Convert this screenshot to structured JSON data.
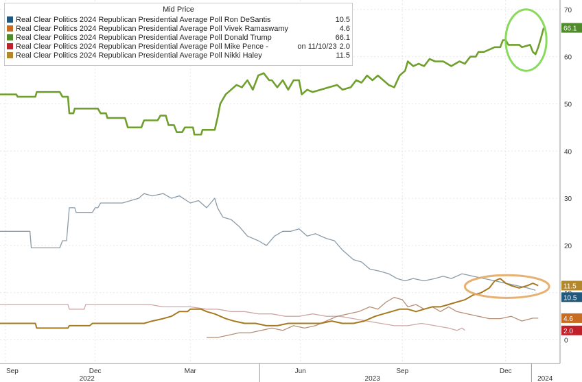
{
  "chart_data": {
    "type": "line",
    "legend_title": "Mid Price",
    "legend_position": "top-left",
    "grid": true,
    "ylim": [
      -5,
      72
    ],
    "y_ticks": [
      0,
      10,
      20,
      30,
      40,
      50,
      60,
      70
    ],
    "x_ticks": [
      "Sep",
      "Dec",
      "Mar",
      "Jun",
      "Sep",
      "Dec"
    ],
    "year_labels": [
      "2022",
      "2023",
      "2024"
    ],
    "series": [
      {
        "name": "Real Clear Politics 2024 Republican Presidential Average Poll Ron DeSantis",
        "last_value": "10.5",
        "last_tag": "10.5",
        "color": "#8a9aa6",
        "legend_color": "#23587d",
        "points": [
          [
            0,
            23
          ],
          [
            1.1,
            23
          ],
          [
            1.15,
            19.5
          ],
          [
            2.2,
            19.5
          ],
          [
            2.3,
            21
          ],
          [
            2.45,
            21
          ],
          [
            2.55,
            28
          ],
          [
            2.75,
            28
          ],
          [
            2.8,
            27
          ],
          [
            3.4,
            27
          ],
          [
            3.5,
            28
          ],
          [
            3.6,
            28
          ],
          [
            3.7,
            29
          ],
          [
            4,
            29
          ],
          [
            4.5,
            29
          ],
          [
            5.1,
            30
          ],
          [
            5.3,
            31
          ],
          [
            5.6,
            30.5
          ],
          [
            6,
            31
          ],
          [
            6.3,
            30
          ],
          [
            6.6,
            30.5
          ],
          [
            7,
            29
          ],
          [
            7.3,
            29.5
          ],
          [
            7.6,
            28
          ],
          [
            7.75,
            29
          ],
          [
            7.9,
            30
          ],
          [
            8.0,
            28
          ],
          [
            8.2,
            26
          ],
          [
            8.5,
            25.5
          ],
          [
            8.8,
            24
          ],
          [
            9.1,
            22
          ],
          [
            9.5,
            21
          ],
          [
            9.8,
            20
          ],
          [
            10.1,
            22
          ],
          [
            10.4,
            23
          ],
          [
            10.7,
            23
          ],
          [
            11,
            23.5
          ],
          [
            11.3,
            22
          ],
          [
            11.6,
            22.5
          ],
          [
            12,
            21.5
          ],
          [
            12.3,
            21
          ],
          [
            12.6,
            19
          ],
          [
            13,
            17
          ],
          [
            13.3,
            16.5
          ],
          [
            13.6,
            15
          ],
          [
            14,
            14.5
          ],
          [
            14.3,
            14
          ],
          [
            14.6,
            13
          ],
          [
            14.9,
            12.5
          ],
          [
            15.2,
            13
          ],
          [
            15.6,
            12.5
          ],
          [
            16,
            13
          ],
          [
            16.3,
            13.5
          ],
          [
            16.6,
            13
          ],
          [
            17,
            14
          ],
          [
            17.4,
            13.5
          ],
          [
            17.8,
            13
          ],
          [
            18.2,
            12.5
          ],
          [
            18.6,
            12
          ],
          [
            19,
            11.5
          ],
          [
            19.4,
            11
          ],
          [
            19.7,
            10.5
          ]
        ]
      },
      {
        "name": "Real Clear Politics 2024 Republican Presidential Average Poll Vivek Ramaswamy",
        "last_value": "4.6",
        "last_tag": "4.6",
        "color": "#b78d76",
        "legend_color": "#c86c22",
        "points": [
          [
            7.6,
            0.5
          ],
          [
            8,
            0.5
          ],
          [
            8.4,
            1
          ],
          [
            8.8,
            1.5
          ],
          [
            9.2,
            1.5
          ],
          [
            9.6,
            2
          ],
          [
            10,
            2.5
          ],
          [
            10.4,
            2
          ],
          [
            10.8,
            3
          ],
          [
            11.2,
            2.5
          ],
          [
            11.6,
            3
          ],
          [
            12,
            4
          ],
          [
            12.4,
            5
          ],
          [
            12.8,
            5.5
          ],
          [
            13.2,
            6
          ],
          [
            13.6,
            7
          ],
          [
            13.9,
            6.5
          ],
          [
            14.2,
            8
          ],
          [
            14.5,
            9
          ],
          [
            14.8,
            8.5
          ],
          [
            15,
            7
          ],
          [
            15.3,
            7.5
          ],
          [
            15.6,
            6.5
          ],
          [
            15.9,
            7
          ],
          [
            16.2,
            6
          ],
          [
            16.5,
            7
          ],
          [
            16.8,
            6
          ],
          [
            17.2,
            5.5
          ],
          [
            17.6,
            5
          ],
          [
            18,
            4.5
          ],
          [
            18.4,
            4.5
          ],
          [
            18.8,
            5
          ],
          [
            19.2,
            4
          ],
          [
            19.6,
            4.6
          ],
          [
            19.8,
            4.6
          ]
        ]
      },
      {
        "name": "Real Clear Politics 2024 Republican Presidential Average Poll Donald Trump",
        "last_value": "66.1",
        "last_tag": "66.1",
        "color": "#6f9f2c",
        "legend_color": "#4f8b2b",
        "points": [
          [
            0,
            52
          ],
          [
            0.6,
            52
          ],
          [
            0.65,
            51.5
          ],
          [
            1.3,
            51.5
          ],
          [
            1.35,
            52.5
          ],
          [
            2.2,
            52.5
          ],
          [
            2.3,
            51.5
          ],
          [
            2.5,
            51.5
          ],
          [
            2.55,
            48
          ],
          [
            2.7,
            48
          ],
          [
            2.75,
            49
          ],
          [
            3.6,
            49
          ],
          [
            3.7,
            48
          ],
          [
            3.9,
            48
          ],
          [
            3.95,
            47
          ],
          [
            4.6,
            47
          ],
          [
            4.7,
            45
          ],
          [
            5.2,
            45
          ],
          [
            5.3,
            46.5
          ],
          [
            5.8,
            46.5
          ],
          [
            5.9,
            47.5
          ],
          [
            6.1,
            47.5
          ],
          [
            6.2,
            45.5
          ],
          [
            6.4,
            45.5
          ],
          [
            6.5,
            44
          ],
          [
            6.7,
            44
          ],
          [
            6.8,
            45
          ],
          [
            7.1,
            45
          ],
          [
            7.15,
            43.5
          ],
          [
            7.4,
            43.5
          ],
          [
            7.45,
            44.5
          ],
          [
            7.9,
            44.5
          ],
          [
            8,
            47
          ],
          [
            8.1,
            50
          ],
          [
            8.3,
            52
          ],
          [
            8.5,
            53
          ],
          [
            8.7,
            54
          ],
          [
            8.9,
            53.5
          ],
          [
            9.1,
            55
          ],
          [
            9.3,
            53
          ],
          [
            9.5,
            56
          ],
          [
            9.7,
            56.5
          ],
          [
            9.9,
            55
          ],
          [
            10,
            55
          ],
          [
            10.2,
            53.5
          ],
          [
            10.4,
            55
          ],
          [
            10.6,
            53
          ],
          [
            10.8,
            55
          ],
          [
            11,
            55
          ],
          [
            11.1,
            52
          ],
          [
            11.3,
            53
          ],
          [
            11.5,
            52.5
          ],
          [
            11.8,
            53
          ],
          [
            12.1,
            53.5
          ],
          [
            12.4,
            54
          ],
          [
            12.6,
            53
          ],
          [
            12.9,
            53.5
          ],
          [
            13.1,
            55
          ],
          [
            13.3,
            54.5
          ],
          [
            13.5,
            56
          ],
          [
            13.7,
            55
          ],
          [
            13.9,
            56
          ],
          [
            14.1,
            55
          ],
          [
            14.3,
            54
          ],
          [
            14.5,
            53.5
          ],
          [
            14.7,
            56
          ],
          [
            14.9,
            57
          ],
          [
            15,
            59
          ],
          [
            15.2,
            58
          ],
          [
            15.4,
            58.5
          ],
          [
            15.6,
            58
          ],
          [
            15.8,
            59.5
          ],
          [
            16,
            59
          ],
          [
            16.3,
            59
          ],
          [
            16.6,
            58
          ],
          [
            16.9,
            59
          ],
          [
            17.1,
            58.5
          ],
          [
            17.3,
            60
          ],
          [
            17.5,
            60
          ],
          [
            17.6,
            61
          ],
          [
            17.8,
            61
          ],
          [
            18,
            61.5
          ],
          [
            18.2,
            62
          ],
          [
            18.4,
            62
          ],
          [
            18.5,
            63.5
          ],
          [
            18.6,
            63.5
          ],
          [
            18.7,
            62.5
          ],
          [
            19.1,
            62.5
          ],
          [
            19.2,
            62
          ],
          [
            19.5,
            62.5
          ],
          [
            19.6,
            61
          ],
          [
            19.7,
            60.5
          ],
          [
            19.8,
            62
          ],
          [
            19.9,
            64
          ],
          [
            20.0,
            66.1
          ]
        ]
      },
      {
        "name": "Real Clear Politics 2024 Republican Presidential Average Poll Mike Pence -",
        "note": "on 11/10/23",
        "last_value": "2.0",
        "last_tag": "2.0",
        "color": "#cfa7a7",
        "legend_color": "#c0202a",
        "points": [
          [
            0,
            7.5
          ],
          [
            2.5,
            7.5
          ],
          [
            2.55,
            6.5
          ],
          [
            3.1,
            6.5
          ],
          [
            3.15,
            7.5
          ],
          [
            5.5,
            7.5
          ],
          [
            6,
            7
          ],
          [
            7,
            7
          ],
          [
            7.6,
            6.5
          ],
          [
            8,
            6.5
          ],
          [
            8.5,
            6
          ],
          [
            9,
            6
          ],
          [
            9.5,
            5.5
          ],
          [
            10,
            5.5
          ],
          [
            10.5,
            5
          ],
          [
            11,
            5
          ],
          [
            11.5,
            5.5
          ],
          [
            12,
            5
          ],
          [
            12.5,
            5
          ],
          [
            13,
            4.5
          ],
          [
            13.5,
            4
          ],
          [
            14,
            3.5
          ],
          [
            14.5,
            3
          ],
          [
            15,
            3
          ],
          [
            15.5,
            3.5
          ],
          [
            16,
            3
          ],
          [
            16.5,
            2.5
          ],
          [
            16.8,
            2
          ],
          [
            17,
            2.5
          ],
          [
            17.1,
            2
          ]
        ]
      },
      {
        "name": "Real Clear Politics 2024 Republican Presidential Average Poll Nikki Haley",
        "last_value": "11.5",
        "last_tag": "11.5",
        "color": "#a5791f",
        "legend_color": "#b3872c",
        "points": [
          [
            0,
            3.5
          ],
          [
            1.3,
            3.5
          ],
          [
            1.35,
            2.5
          ],
          [
            2.5,
            2.5
          ],
          [
            2.55,
            3
          ],
          [
            3.3,
            3
          ],
          [
            3.4,
            3.5
          ],
          [
            4.5,
            3.5
          ],
          [
            5.3,
            3.5
          ],
          [
            5.6,
            4
          ],
          [
            6,
            4.5
          ],
          [
            6.3,
            5
          ],
          [
            6.6,
            6
          ],
          [
            6.9,
            6
          ],
          [
            7.0,
            6.5
          ],
          [
            7.4,
            6.5
          ],
          [
            7.6,
            6
          ],
          [
            7.9,
            5.5
          ],
          [
            8.3,
            4.5
          ],
          [
            8.6,
            4
          ],
          [
            9,
            3.5
          ],
          [
            9.4,
            3.5
          ],
          [
            9.8,
            3
          ],
          [
            10.2,
            3
          ],
          [
            10.6,
            3.5
          ],
          [
            11,
            3.5
          ],
          [
            11.4,
            3.5
          ],
          [
            11.8,
            3.5
          ],
          [
            12.2,
            4
          ],
          [
            12.6,
            3.5
          ],
          [
            13,
            3.5
          ],
          [
            13.4,
            4
          ],
          [
            13.8,
            5
          ],
          [
            14.1,
            5.5
          ],
          [
            14.4,
            6
          ],
          [
            14.7,
            6.5
          ],
          [
            15,
            6.5
          ],
          [
            15.3,
            6
          ],
          [
            15.6,
            6.5
          ],
          [
            15.9,
            7
          ],
          [
            16.2,
            7
          ],
          [
            16.5,
            7.5
          ],
          [
            16.8,
            8
          ],
          [
            17.1,
            8.5
          ],
          [
            17.4,
            9.5
          ],
          [
            17.7,
            10
          ],
          [
            18.0,
            11
          ],
          [
            18.2,
            12.5
          ],
          [
            18.4,
            13
          ],
          [
            18.6,
            12
          ],
          [
            18.8,
            11.5
          ],
          [
            19.1,
            11
          ],
          [
            19.4,
            11.5
          ],
          [
            19.6,
            12
          ],
          [
            19.8,
            11.5
          ]
        ]
      }
    ],
    "highlights": [
      {
        "name": "trump-highlight-ellipse",
        "color": "#7cd64a",
        "cx": 19.35,
        "cy": 63.5,
        "rx": 0.75,
        "ry": 6.5
      },
      {
        "name": "haley-highlight-ellipse",
        "color": "#e3a863",
        "cx": 18.65,
        "cy": 11.3,
        "rx": 1.55,
        "ry": 2.4
      }
    ]
  }
}
